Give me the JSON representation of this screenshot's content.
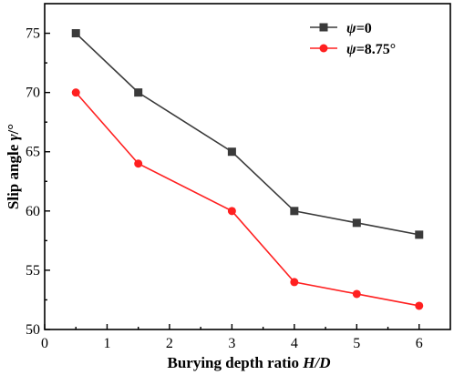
{
  "chart_data": {
    "type": "line",
    "xlabel_prefix": "Burying depth ratio ",
    "xlabel_italic": "H/D",
    "ylabel_prefix": "Slip angle ",
    "ylabel_italic": "γ",
    "ylabel_suffix": "/°",
    "xlim": [
      0,
      6.5
    ],
    "ylim": [
      50,
      77.5
    ],
    "xticks": [
      0,
      1,
      2,
      3,
      4,
      5,
      6
    ],
    "yticks": [
      50,
      55,
      60,
      65,
      70,
      75
    ],
    "legend_position": "top-right",
    "grid": false,
    "series": [
      {
        "name_italic": "ψ",
        "name_rest": "=0",
        "color": "#3a3a3a",
        "marker": "square",
        "x": [
          0.5,
          1.5,
          3,
          4,
          5,
          6
        ],
        "y": [
          75,
          70,
          65,
          60,
          59,
          58
        ]
      },
      {
        "name_italic": "ψ",
        "name_rest": "=8.75°",
        "color": "#ff2020",
        "marker": "circle",
        "x": [
          0.5,
          1.5,
          3,
          4,
          5,
          6
        ],
        "y": [
          70,
          64,
          60,
          54,
          53,
          52
        ]
      }
    ]
  }
}
